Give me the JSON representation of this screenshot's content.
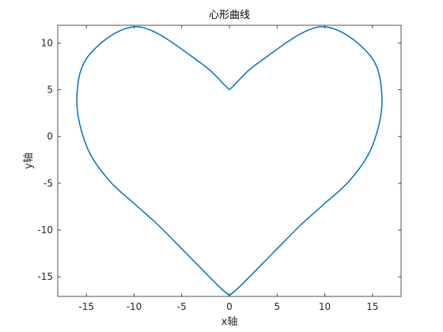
{
  "chart_data": {
    "type": "line",
    "title": "心形曲线",
    "xlabel": "x轴",
    "ylabel": "y轴",
    "xlim": [
      -18,
      18
    ],
    "ylim": [
      -17.1,
      11.9
    ],
    "xticks": [
      -15,
      -10,
      -5,
      0,
      5,
      10,
      15
    ],
    "yticks": [
      -15,
      -10,
      -5,
      0,
      5,
      10
    ],
    "grid": false,
    "box": true,
    "series": [
      {
        "color": "#0072BD",
        "x": [
          0,
          3.18,
          9.58,
          14.71,
          16.0,
          14.99,
          12.69,
          9.9,
          7.45,
          4.73,
          1.22,
          0,
          -1.22,
          -4.73,
          -7.45,
          -9.9,
          -12.69,
          -14.99,
          -16.0,
          -14.71,
          -9.58,
          -3.18,
          0
        ],
        "y": [
          5.0,
          8.0,
          11.74,
          8.72,
          4.0,
          -1.0,
          -4.61,
          -7.24,
          -9.48,
          -12.28,
          -15.91,
          -17.0,
          -15.91,
          -12.28,
          -9.48,
          -7.24,
          -4.61,
          -1.0,
          4.0,
          8.72,
          11.74,
          8.0,
          5.0
        ]
      }
    ]
  }
}
